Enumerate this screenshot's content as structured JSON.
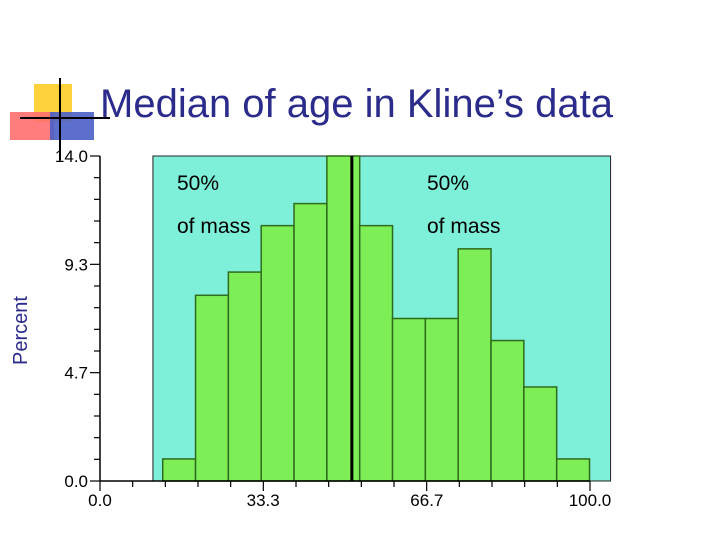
{
  "slide": {
    "title": "Median of age in Kline’s data"
  },
  "chart_data": {
    "type": "bar",
    "ylabel": "Percent",
    "xlabel": "",
    "xlim": [
      0,
      100
    ],
    "ylim": [
      0,
      14
    ],
    "x_tick_labels": [
      "0.0",
      "33.3",
      "66.7",
      "100.0"
    ],
    "x_tick_values": [
      0,
      33.3,
      66.7,
      100
    ],
    "y_tick_labels": [
      "0.0",
      "4.7",
      "9.3",
      "14.0"
    ],
    "y_tick_values": [
      0,
      4.67,
      9.33,
      14
    ],
    "shaded_range": [
      10.8,
      104.2
    ],
    "median": 51.4,
    "bin_width": 6.7,
    "bins": [
      {
        "x0": 12.8,
        "value": 0.95
      },
      {
        "x0": 19.5,
        "value": 8.0
      },
      {
        "x0": 26.2,
        "value": 9.0
      },
      {
        "x0": 32.9,
        "value": 11.0
      },
      {
        "x0": 39.6,
        "value": 11.95
      },
      {
        "x0": 46.3,
        "value": 14.0
      },
      {
        "x0": 53.0,
        "value": 11.0
      },
      {
        "x0": 59.7,
        "value": 7.0
      },
      {
        "x0": 66.4,
        "value": 7.0
      },
      {
        "x0": 73.1,
        "value": 10.0
      },
      {
        "x0": 79.8,
        "value": 6.05
      },
      {
        "x0": 86.5,
        "value": 4.05
      },
      {
        "x0": 93.2,
        "value": 0.95
      }
    ],
    "annotations": [
      {
        "line1": "50%",
        "line2": "of mass",
        "side": "left"
      },
      {
        "line1": "50%",
        "line2": "of mass",
        "side": "right"
      }
    ],
    "colors": {
      "bar_fill": "#7eee57",
      "bar_stroke": "#2f6b1c",
      "shaded_region": "#7eefd8",
      "median_line": "#000000",
      "axis": "#000000",
      "title": "#2b2b8c"
    }
  }
}
